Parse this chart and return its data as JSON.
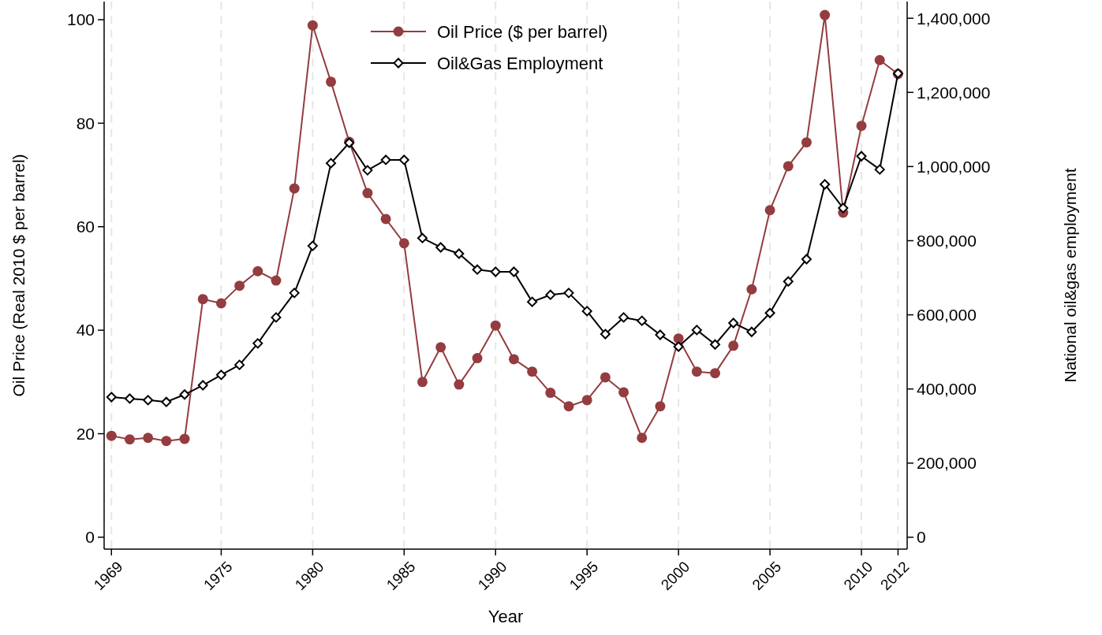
{
  "chart_data": {
    "type": "line",
    "xlabel": "Year",
    "ylabel": "Oil Price (Real 2010 $ per barrel)",
    "y2label": "National oil&gas employment",
    "x": [
      1969,
      1970,
      1971,
      1972,
      1973,
      1974,
      1975,
      1976,
      1977,
      1978,
      1979,
      1980,
      1981,
      1982,
      1983,
      1984,
      1985,
      1986,
      1987,
      1988,
      1989,
      1990,
      1991,
      1992,
      1993,
      1994,
      1995,
      1996,
      1997,
      1998,
      1999,
      2000,
      2001,
      2002,
      2003,
      2004,
      2005,
      2006,
      2007,
      2008,
      2009,
      2010,
      2011,
      2012
    ],
    "series": [
      {
        "name": "Oil Price ($ per barrel)",
        "color": "#943c3f",
        "marker": "circle",
        "values": [
          19.6,
          18.9,
          19.2,
          18.6,
          19.0,
          46.0,
          45.2,
          48.6,
          51.4,
          49.6,
          67.4,
          98.9,
          88.0,
          76.4,
          66.5,
          61.5,
          56.8,
          30.0,
          36.7,
          29.5,
          34.6,
          40.9,
          34.4,
          32.0,
          27.9,
          25.3,
          26.5,
          30.9,
          28.0,
          19.2,
          25.3,
          38.4,
          32.0,
          31.7,
          37.0,
          47.9,
          63.2,
          71.7,
          76.3,
          100.9,
          62.7,
          79.5,
          92.2,
          89.5
        ]
      },
      {
        "name": "Oil&Gas Employment",
        "color": "#000000",
        "marker": "diamond",
        "axis": "y2",
        "values": [
          378000,
          374000,
          370000,
          365000,
          385000,
          410000,
          438000,
          465000,
          523000,
          593000,
          659000,
          786000,
          1009000,
          1064000,
          990000,
          1018000,
          1018000,
          807000,
          782000,
          765000,
          722000,
          716000,
          716000,
          635000,
          654000,
          659000,
          610000,
          548000,
          593000,
          584000,
          546000,
          514000,
          559000,
          520000,
          578000,
          554000,
          605000,
          690000,
          750000,
          952000,
          888000,
          1028000,
          992000,
          1251000
        ]
      }
    ],
    "xlim": [
      1968.6,
      2012.5
    ],
    "xticks": [
      1969,
      1975,
      1980,
      1985,
      1990,
      1995,
      2000,
      2005,
      2010,
      2012
    ],
    "ylim": [
      -2.3,
      103.5
    ],
    "yticks": [
      0,
      20,
      40,
      60,
      80,
      100
    ],
    "y2lim": [
      -32000,
      1445000
    ],
    "y2ticks": [
      {
        "value": 0,
        "label": "0"
      },
      {
        "value": 200000,
        "label": "200,000"
      },
      {
        "value": 400000,
        "label": "400,000"
      },
      {
        "value": 600000,
        "label": "600,000"
      },
      {
        "value": 800000,
        "label": "800,000"
      },
      {
        "value": 1000000,
        "label": "1,000,000"
      },
      {
        "value": 1200000,
        "label": "1,200,000"
      },
      {
        "value": 1400000,
        "label": "1,400,000"
      }
    ],
    "grid": "x",
    "legend": "top",
    "line_style": "solid"
  }
}
